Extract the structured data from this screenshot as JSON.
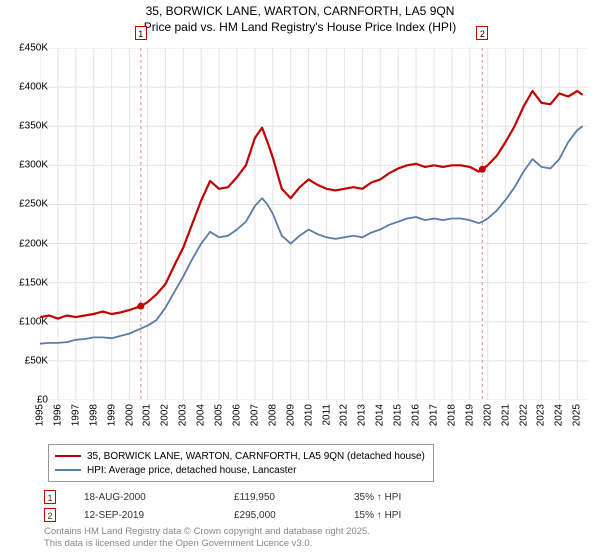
{
  "title_line1": "35, BORWICK LANE, WARTON, CARNFORTH, LA5 9QN",
  "title_line2": "Price paid vs. HM Land Registry's House Price Index (HPI)",
  "title_fontsize": 12,
  "chart": {
    "type": "line",
    "background_color": "#ffffff",
    "grid_color": "#e4e4e4",
    "xlim": [
      1995,
      2025.6
    ],
    "ylim": [
      0,
      450000
    ],
    "ytick_step": 50000,
    "xtick_step": 1,
    "y_prefix": "£",
    "y_suffix": "K",
    "label_fontsize": 10,
    "series": [
      {
        "name": "price_paid",
        "label": "35, BORWICK LANE, WARTON, CARNFORTH, LA5 9QN (detached house)",
        "color": "#c00000",
        "line_width": 2.2,
        "points": [
          [
            1995,
            106000
          ],
          [
            1995.5,
            108000
          ],
          [
            1996,
            104000
          ],
          [
            1996.5,
            108000
          ],
          [
            1997,
            106000
          ],
          [
            1997.5,
            108000
          ],
          [
            1998,
            110000
          ],
          [
            1998.5,
            113000
          ],
          [
            1999,
            110000
          ],
          [
            1999.5,
            112000
          ],
          [
            2000,
            115000
          ],
          [
            2000.63,
            119950
          ],
          [
            2001,
            125000
          ],
          [
            2001.5,
            135000
          ],
          [
            2002,
            148000
          ],
          [
            2002.5,
            172000
          ],
          [
            2003,
            195000
          ],
          [
            2003.5,
            225000
          ],
          [
            2004,
            255000
          ],
          [
            2004.5,
            280000
          ],
          [
            2005,
            270000
          ],
          [
            2005.5,
            272000
          ],
          [
            2006,
            285000
          ],
          [
            2006.5,
            300000
          ],
          [
            2007,
            335000
          ],
          [
            2007.4,
            348000
          ],
          [
            2007.7,
            330000
          ],
          [
            2008,
            310000
          ],
          [
            2008.5,
            270000
          ],
          [
            2009,
            258000
          ],
          [
            2009.5,
            272000
          ],
          [
            2010,
            282000
          ],
          [
            2010.5,
            275000
          ],
          [
            2011,
            270000
          ],
          [
            2011.5,
            268000
          ],
          [
            2012,
            270000
          ],
          [
            2012.5,
            272000
          ],
          [
            2013,
            270000
          ],
          [
            2013.5,
            278000
          ],
          [
            2014,
            282000
          ],
          [
            2014.5,
            290000
          ],
          [
            2015,
            296000
          ],
          [
            2015.5,
            300000
          ],
          [
            2016,
            302000
          ],
          [
            2016.5,
            298000
          ],
          [
            2017,
            300000
          ],
          [
            2017.5,
            298000
          ],
          [
            2018,
            300000
          ],
          [
            2018.5,
            300000
          ],
          [
            2019,
            298000
          ],
          [
            2019.5,
            292000
          ],
          [
            2019.7,
            295000
          ],
          [
            2020,
            300000
          ],
          [
            2020.5,
            312000
          ],
          [
            2021,
            330000
          ],
          [
            2021.5,
            350000
          ],
          [
            2022,
            375000
          ],
          [
            2022.5,
            395000
          ],
          [
            2023,
            380000
          ],
          [
            2023.5,
            378000
          ],
          [
            2024,
            392000
          ],
          [
            2024.5,
            388000
          ],
          [
            2025,
            395000
          ],
          [
            2025.3,
            390000
          ]
        ]
      },
      {
        "name": "hpi",
        "label": "HPI: Average price, detached house, Lancaster",
        "color": "#5b7ba8",
        "line_width": 1.8,
        "points": [
          [
            1995,
            72000
          ],
          [
            1995.5,
            73000
          ],
          [
            1996,
            73000
          ],
          [
            1996.5,
            74000
          ],
          [
            1997,
            77000
          ],
          [
            1997.5,
            78000
          ],
          [
            1998,
            80000
          ],
          [
            1998.5,
            80000
          ],
          [
            1999,
            79000
          ],
          [
            1999.5,
            82000
          ],
          [
            2000,
            85000
          ],
          [
            2000.5,
            90000
          ],
          [
            2001,
            95000
          ],
          [
            2001.5,
            102000
          ],
          [
            2002,
            118000
          ],
          [
            2002.5,
            138000
          ],
          [
            2003,
            158000
          ],
          [
            2003.5,
            180000
          ],
          [
            2004,
            200000
          ],
          [
            2004.5,
            215000
          ],
          [
            2005,
            208000
          ],
          [
            2005.5,
            210000
          ],
          [
            2006,
            218000
          ],
          [
            2006.5,
            228000
          ],
          [
            2007,
            248000
          ],
          [
            2007.4,
            258000
          ],
          [
            2007.7,
            250000
          ],
          [
            2008,
            238000
          ],
          [
            2008.5,
            210000
          ],
          [
            2009,
            200000
          ],
          [
            2009.5,
            210000
          ],
          [
            2010,
            218000
          ],
          [
            2010.5,
            212000
          ],
          [
            2011,
            208000
          ],
          [
            2011.5,
            206000
          ],
          [
            2012,
            208000
          ],
          [
            2012.5,
            210000
          ],
          [
            2013,
            208000
          ],
          [
            2013.5,
            214000
          ],
          [
            2014,
            218000
          ],
          [
            2014.5,
            224000
          ],
          [
            2015,
            228000
          ],
          [
            2015.5,
            232000
          ],
          [
            2016,
            234000
          ],
          [
            2016.5,
            230000
          ],
          [
            2017,
            232000
          ],
          [
            2017.5,
            230000
          ],
          [
            2018,
            232000
          ],
          [
            2018.5,
            232000
          ],
          [
            2019,
            230000
          ],
          [
            2019.5,
            226000
          ],
          [
            2019.7,
            228000
          ],
          [
            2020,
            232000
          ],
          [
            2020.5,
            242000
          ],
          [
            2021,
            256000
          ],
          [
            2021.5,
            272000
          ],
          [
            2022,
            292000
          ],
          [
            2022.5,
            308000
          ],
          [
            2023,
            298000
          ],
          [
            2023.5,
            296000
          ],
          [
            2024,
            308000
          ],
          [
            2024.5,
            330000
          ],
          [
            2025,
            345000
          ],
          [
            2025.3,
            350000
          ]
        ]
      }
    ],
    "markers": [
      {
        "n": "1",
        "x": 2000.63,
        "y": 119950,
        "vline_color": "#e8a0a0",
        "dash": "3,3"
      },
      {
        "n": "2",
        "x": 2019.7,
        "y": 295000,
        "vline_color": "#e8a0a0",
        "dash": "3,3"
      }
    ]
  },
  "sales": [
    {
      "n": "1",
      "date": "18-AUG-2000",
      "price": "£119,950",
      "hpi": "35% ↑ HPI"
    },
    {
      "n": "2",
      "date": "12-SEP-2019",
      "price": "£295,000",
      "hpi": "15% ↑ HPI"
    }
  ],
  "license_line1": "Contains HM Land Registry data © Crown copyright and database right 2025.",
  "license_line2": "This data is licensed under the Open Government Licence v3.0.",
  "colors": {
    "marker_border": "#c00000",
    "license_text": "#888888"
  }
}
